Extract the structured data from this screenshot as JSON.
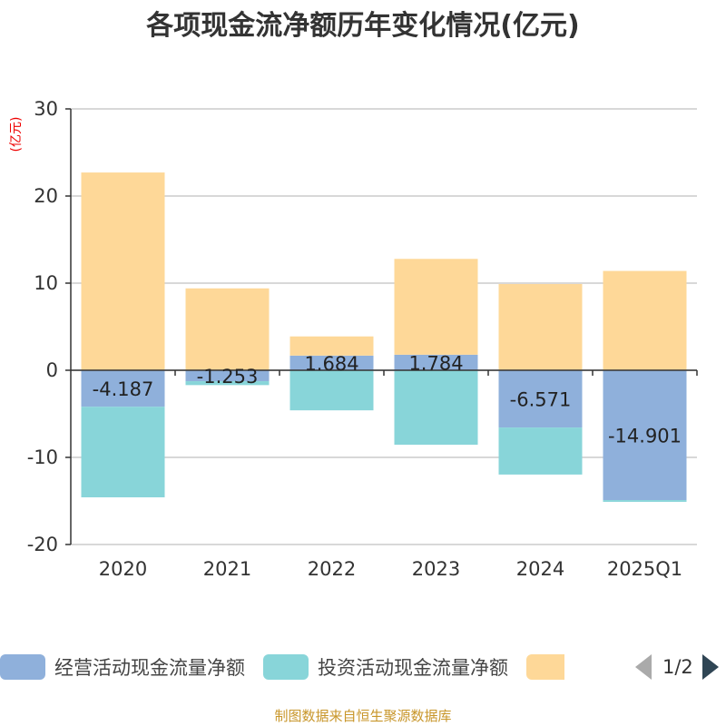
{
  "chart_data": {
    "type": "bar",
    "stacked": true,
    "title": "各项现金流净额历年变化情况(亿元)",
    "ylabel": "(亿元)",
    "xlabel": "",
    "ylim": [
      -20,
      30
    ],
    "yticks": [
      30,
      20,
      10,
      0,
      -10,
      -20
    ],
    "grid": true,
    "legend_position": "bottom",
    "categories": [
      "2020",
      "2021",
      "2022",
      "2023",
      "2024",
      "2025Q1"
    ],
    "series": [
      {
        "name": "经营活动现金流量净额",
        "color": "#8fb0db",
        "values": [
          -4.187,
          -1.253,
          1.684,
          1.784,
          -6.571,
          -14.901
        ],
        "labels": [
          "-4.187",
          "-1.253",
          "1.684",
          "1.784",
          "-6.571",
          "-14.901"
        ]
      },
      {
        "name": "投资活动现金流量净额",
        "color": "#88d5d9",
        "values": [
          -10.4,
          -0.45,
          -4.6,
          -8.55,
          -5.4,
          -0.2
        ]
      },
      {
        "name": "",
        "color": "#fed898",
        "values": [
          22.7,
          9.4,
          2.2,
          11.0,
          9.9,
          11.4
        ]
      }
    ]
  },
  "legend": {
    "page": "1/2"
  },
  "source": "制图数据来自恒生聚源数据库"
}
